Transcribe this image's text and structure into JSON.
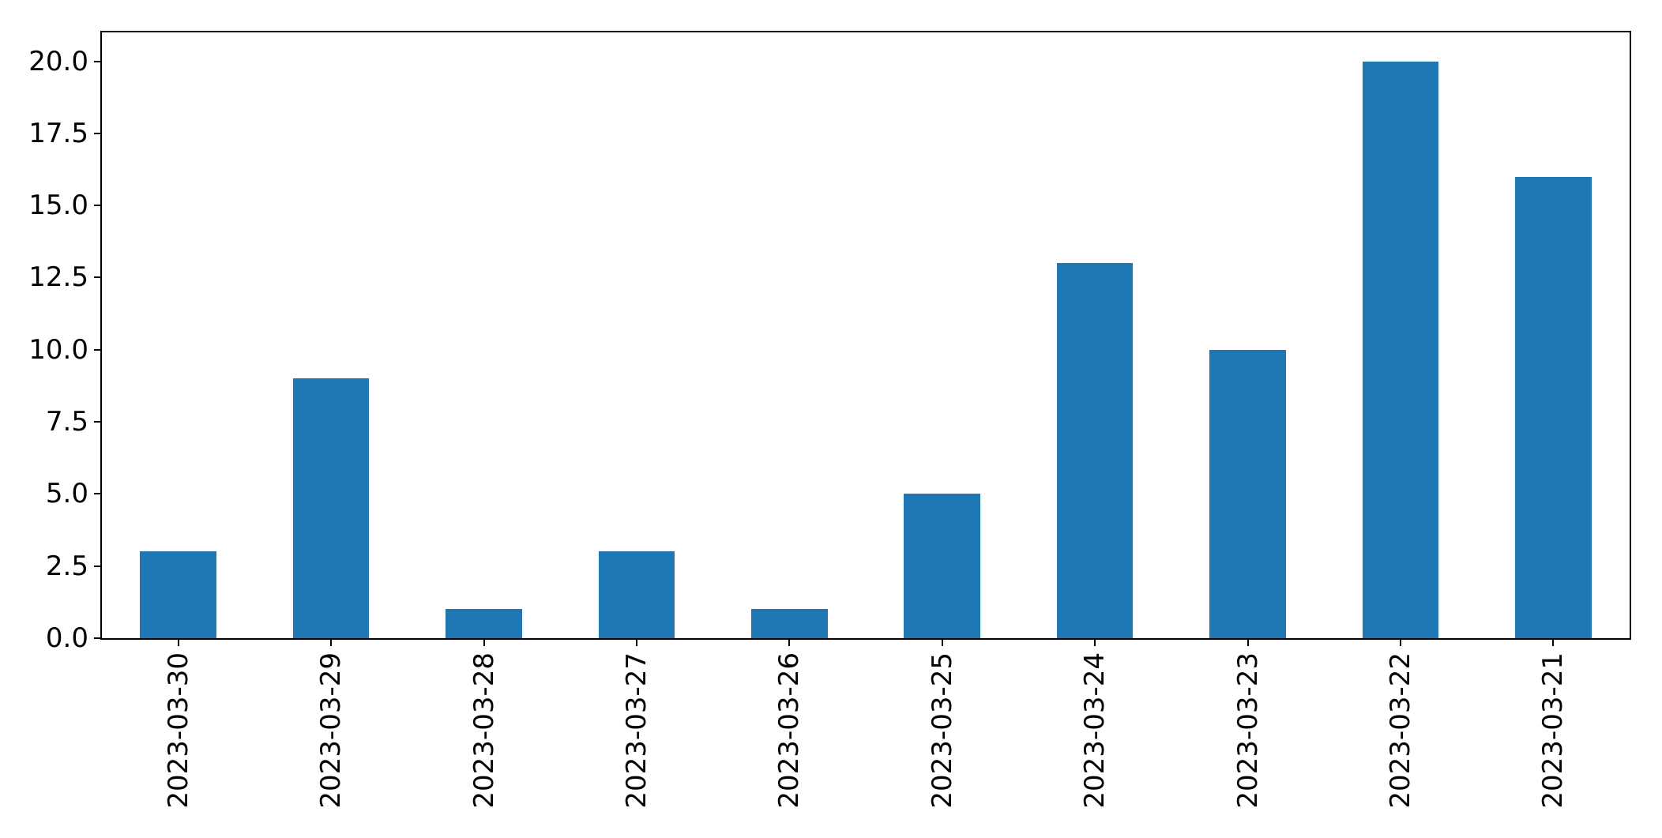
{
  "figure": {
    "background_color": "#ffffff",
    "axis_color": "#000000"
  },
  "chart_data": {
    "type": "bar",
    "title": "",
    "xlabel": "",
    "ylabel": "",
    "categories": [
      "2023-03-30",
      "2023-03-29",
      "2023-03-28",
      "2023-03-27",
      "2023-03-26",
      "2023-03-25",
      "2023-03-24",
      "2023-03-23",
      "2023-03-22",
      "2023-03-21"
    ],
    "values": [
      3,
      9,
      1,
      3,
      1,
      5,
      13,
      10,
      20,
      16
    ],
    "bar_color": "#1f77b4",
    "bar_width_fraction": 0.5,
    "ylim": [
      0,
      21
    ],
    "yticks": {
      "values": [
        0,
        2.5,
        5,
        7.5,
        10,
        12.5,
        15,
        17.5,
        20
      ],
      "labels": [
        "0.0",
        "2.5",
        "5.0",
        "7.5",
        "10.0",
        "12.5",
        "15.0",
        "17.5",
        "20.0"
      ]
    },
    "x_tick_rotation_deg": 90,
    "grid": false,
    "legend": null
  }
}
